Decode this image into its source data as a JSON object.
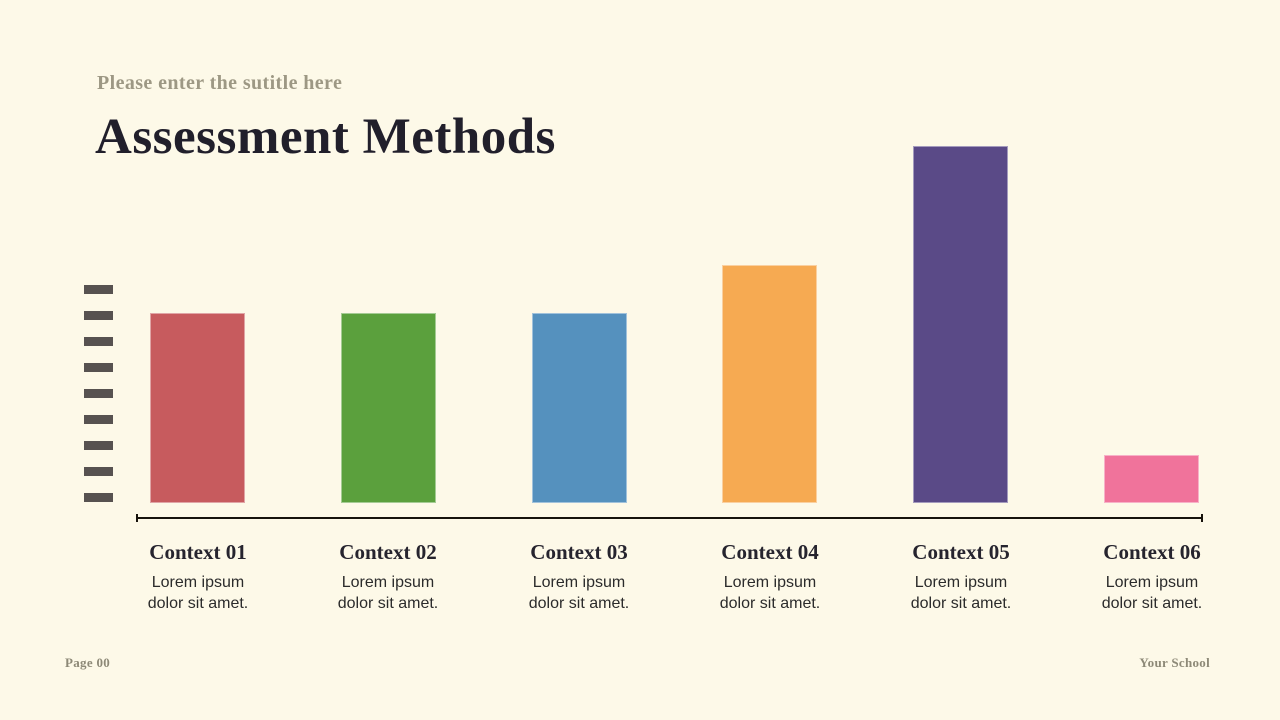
{
  "slide": {
    "subtitle": "Please enter the sutitle here",
    "title": "Assessment Methods",
    "footer": {
      "page": "Page 00",
      "school": "Your School"
    }
  },
  "colors": {
    "background": "#FDF9E8",
    "title_text": "#211F2B",
    "subtitle_text": "#9D9884",
    "footer_text": "#8D8977",
    "axis_line": "#17130C",
    "y_tick_dash": "#575250",
    "category_text": "#26242E",
    "caption_text": "#2B2B2B"
  },
  "chart_data": {
    "type": "bar",
    "title": "",
    "categories": [
      "Context 01",
      "Context 02",
      "Context 03",
      "Context 04",
      "Context 05",
      "Context 06"
    ],
    "values": [
      40,
      40,
      40,
      50,
      75,
      10
    ],
    "bar_colors": [
      "#C75B5E",
      "#5BA03D",
      "#5591BE",
      "#F6AA52",
      "#5A4A87",
      "#F0739B"
    ],
    "captions": [
      "Lorem ipsum dolor sit amet.",
      "Lorem ipsum dolor sit amet.",
      "Lorem ipsum dolor sit amet.",
      "Lorem ipsum dolor sit amet.",
      "Lorem ipsum dolor sit amet.",
      "Lorem ipsum dolor sit amet."
    ],
    "xlabel": "",
    "ylabel": "",
    "ylim": [
      0,
      78
    ],
    "y_tick_count": 9,
    "grid": false,
    "legend": false
  }
}
